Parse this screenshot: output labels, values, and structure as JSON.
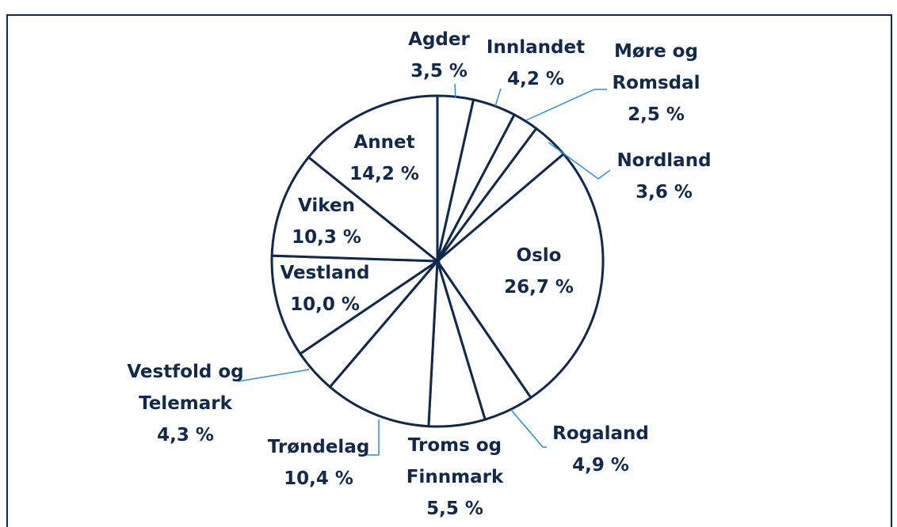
{
  "chart_data": {
    "type": "pie",
    "categories": [
      "Agder",
      "Innlandet",
      "Møre og Romsdal",
      "Nordland",
      "Oslo",
      "Rogaland",
      "Troms og Finnmark",
      "Trøndelag",
      "Vestfold og Telemark",
      "Vestland",
      "Viken",
      "Annet"
    ],
    "values": [
      3.5,
      4.2,
      2.5,
      3.6,
      26.7,
      4.9,
      5.5,
      10.4,
      4.3,
      10.0,
      10.3,
      14.2
    ],
    "value_labels": [
      "3,5 %",
      "4,2 %",
      "2,5 %",
      "3,6 %",
      "26,7 %",
      "4,9 %",
      "5,5 %",
      "10,4 %",
      "4,3 %",
      "10,0 %",
      "10,3 %",
      "14,2 %"
    ],
    "color": "#ffffff"
  }
}
